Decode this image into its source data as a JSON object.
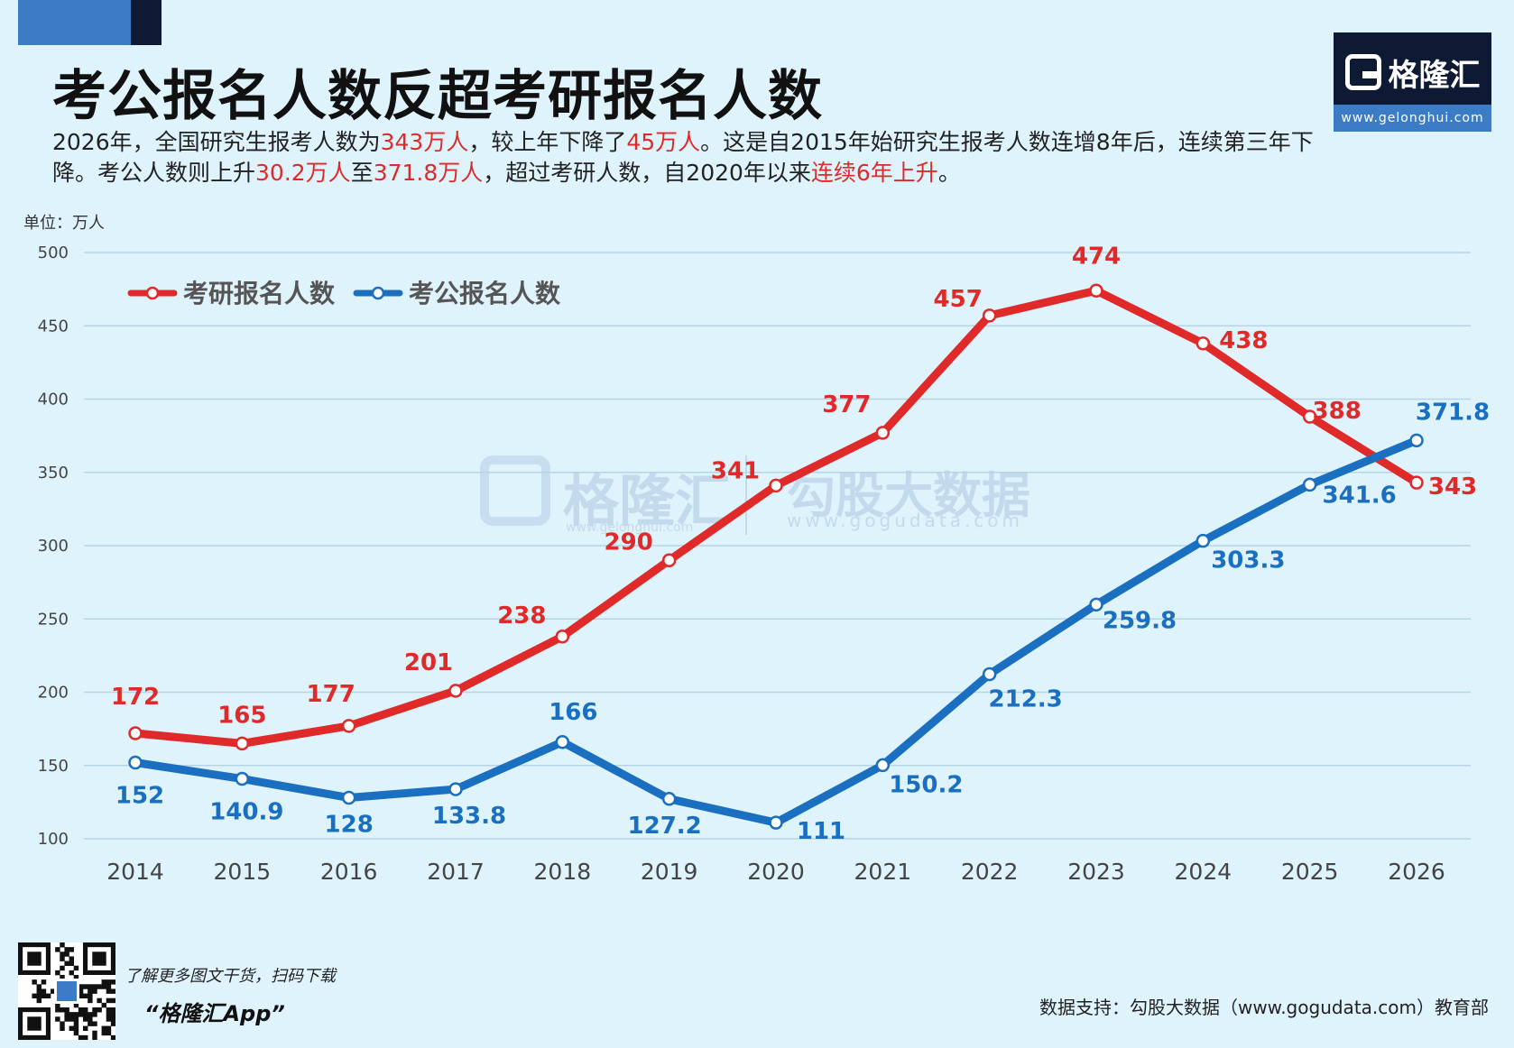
{
  "title": "考公报名人数反超考研报名人数",
  "subtitle": [
    {
      "t": "2026年，全国研究生报考人数为",
      "hl": false
    },
    {
      "t": "343万人",
      "hl": true
    },
    {
      "t": "，较上年下降了",
      "hl": false
    },
    {
      "t": "45万人",
      "hl": true
    },
    {
      "t": "。这是自2015年始研究生报考人数连增8年后，连续第三年下降。考公人数则上升",
      "hl": false
    },
    {
      "t": "30.2万人",
      "hl": true
    },
    {
      "t": "至",
      "hl": false
    },
    {
      "t": "371.8万人",
      "hl": true
    },
    {
      "t": "，超过考研人数，自2020年以来",
      "hl": false
    },
    {
      "t": "连续6年上升",
      "hl": true
    },
    {
      "t": "。",
      "hl": false
    }
  ],
  "logo": {
    "name": "格隆汇",
    "url": "www.gelonghui.com"
  },
  "unit_label": "单位：万人",
  "watermark": {
    "left": "格隆汇",
    "left_url": "www.gelonghui.com",
    "right": "勾股大数据",
    "right_url": "www.gogudata.com"
  },
  "colors": {
    "red": "#e02a2a",
    "blue": "#1a6fc0",
    "background": "#dff3fc",
    "dark": "#0e1a34",
    "accent": "#3b7cc4"
  },
  "chart_data": {
    "type": "line",
    "x": [
      "2014",
      "2015",
      "2016",
      "2017",
      "2018",
      "2019",
      "2020",
      "2021",
      "2022",
      "2023",
      "2024",
      "2025",
      "2026"
    ],
    "ylim": [
      100,
      500
    ],
    "yticks": [
      100,
      150,
      200,
      250,
      300,
      350,
      400,
      450,
      500
    ],
    "grid": true,
    "legend_position": "top-left",
    "series": [
      {
        "name": "考研报名人数",
        "color": "#e02a2a",
        "values": [
          172,
          165,
          177,
          201,
          238,
          290,
          341,
          377,
          457,
          474,
          438,
          388,
          343
        ],
        "labels": [
          "172",
          "165",
          "177",
          "201",
          "238",
          "290",
          "341",
          "377",
          "457",
          "474",
          "438",
          "388",
          "343"
        ]
      },
      {
        "name": "考公报名人数",
        "color": "#1a6fc0",
        "values": [
          152,
          140.9,
          128,
          133.8,
          166,
          127.2,
          111,
          150.2,
          212.3,
          259.8,
          303.3,
          341.6,
          371.8
        ],
        "labels": [
          "152",
          "140.9",
          "128",
          "133.8",
          "166",
          "127.2",
          "111",
          "150.2",
          "212.3",
          "259.8",
          "303.3",
          "341.6",
          "371.8"
        ]
      }
    ]
  },
  "footer": {
    "promo_line1": "了解更多图文干货，扫码下载",
    "promo_line2": "“格隆汇App”",
    "source": "数据支持：勾股大数据（www.gogudata.com）教育部"
  }
}
